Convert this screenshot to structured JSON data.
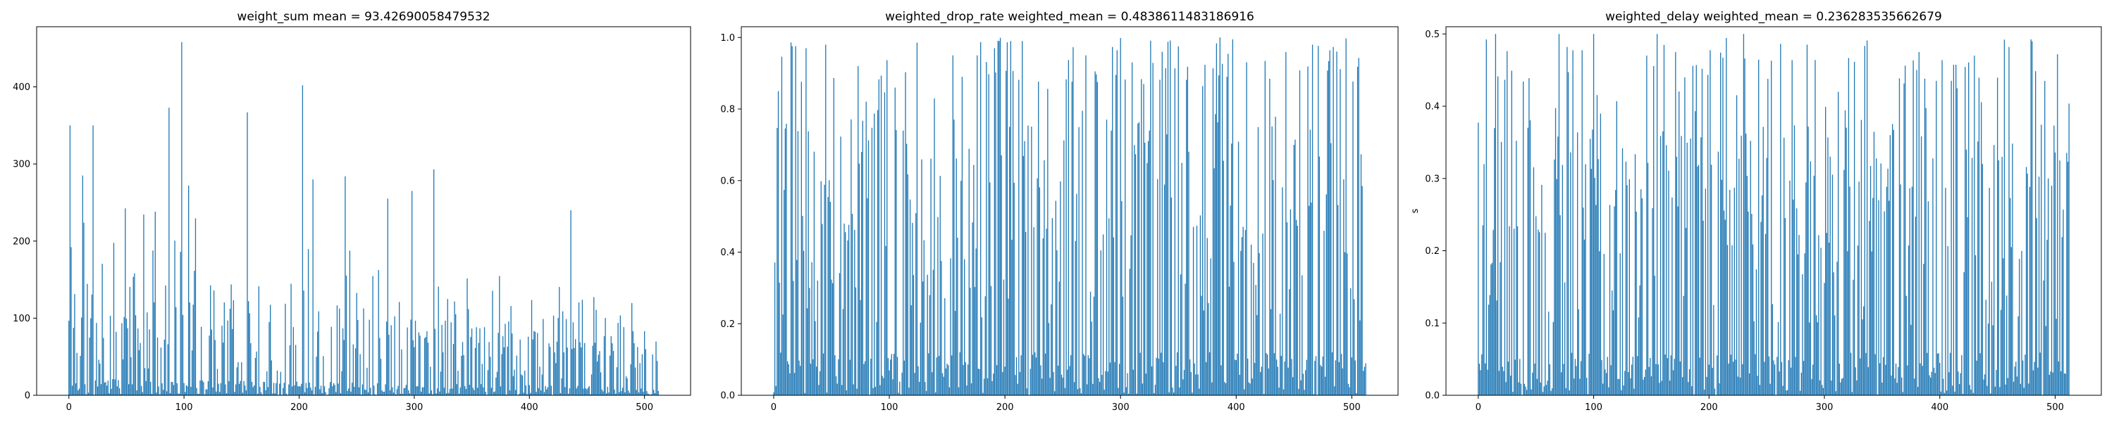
{
  "colors": {
    "bar": "#1f77b4",
    "axis": "#000000"
  },
  "chart_data": [
    {
      "type": "bar",
      "title": "weight_sum mean = 93.42690058479532",
      "xlabel": "",
      "ylabel": "",
      "xlim": [
        -28,
        540
      ],
      "ylim": [
        0,
        478
      ],
      "xticks": [
        0,
        100,
        200,
        300,
        400,
        500
      ],
      "yticks": [
        0,
        100,
        200,
        300,
        400
      ],
      "n_bars": 513,
      "seed": 11,
      "mean": 93.42690058479532,
      "peaks": [
        [
          1,
          350
        ],
        [
          12,
          285
        ],
        [
          21,
          350
        ],
        [
          87,
          373
        ],
        [
          98,
          458
        ],
        [
          104,
          272
        ],
        [
          155,
          367
        ],
        [
          203,
          402
        ],
        [
          212,
          280
        ],
        [
          240,
          284
        ],
        [
          277,
          255
        ],
        [
          298,
          265
        ],
        [
          317,
          293
        ],
        [
          436,
          240
        ]
      ],
      "legend": "none",
      "grid": false
    },
    {
      "type": "bar",
      "title": "weighted_drop_rate weighted_mean = 0.4838611483186916",
      "xlabel": "",
      "ylabel": "",
      "xlim": [
        -28,
        540
      ],
      "ylim": [
        0,
        1.03
      ],
      "xticks": [
        0,
        100,
        200,
        300,
        400,
        500
      ],
      "yticks": [
        0.0,
        0.2,
        0.4,
        0.6,
        0.8,
        1.0
      ],
      "n_bars": 513,
      "seed": 23,
      "mean": 0.4838611483186916,
      "peaks": [
        [
          4,
          0.85
        ],
        [
          28,
          0.97
        ],
        [
          73,
          0.92
        ],
        [
          105,
          0.86
        ],
        [
          155,
          0.95
        ],
        [
          195,
          0.99
        ],
        [
          205,
          0.99
        ],
        [
          215,
          0.99
        ],
        [
          270,
          0.95
        ],
        [
          325,
          0.74
        ],
        [
          386,
          1.0
        ],
        [
          466,
          0.98
        ]
      ],
      "legend": "none",
      "grid": false
    },
    {
      "type": "bar",
      "title": "weighted_delay weighted_mean = 0.236283535662679",
      "xlabel": "",
      "ylabel": "s",
      "xlim": [
        -28,
        540
      ],
      "ylim": [
        0,
        0.51
      ],
      "xticks": [
        0,
        100,
        200,
        300,
        400,
        500
      ],
      "yticks": [
        0.0,
        0.1,
        0.2,
        0.3,
        0.4,
        0.5
      ],
      "n_bars": 513,
      "seed": 37,
      "mean": 0.236283535662679,
      "peaks": [
        [
          15,
          0.5
        ],
        [
          70,
          0.5
        ],
        [
          100,
          0.5
        ],
        [
          155,
          0.5
        ],
        [
          230,
          0.5
        ],
        [
          312,
          0.42
        ],
        [
          357,
          0.36
        ],
        [
          430,
          0.47
        ],
        [
          480,
          0.49
        ],
        [
          497,
          0.29
        ]
      ],
      "legend": "none",
      "grid": false
    }
  ]
}
